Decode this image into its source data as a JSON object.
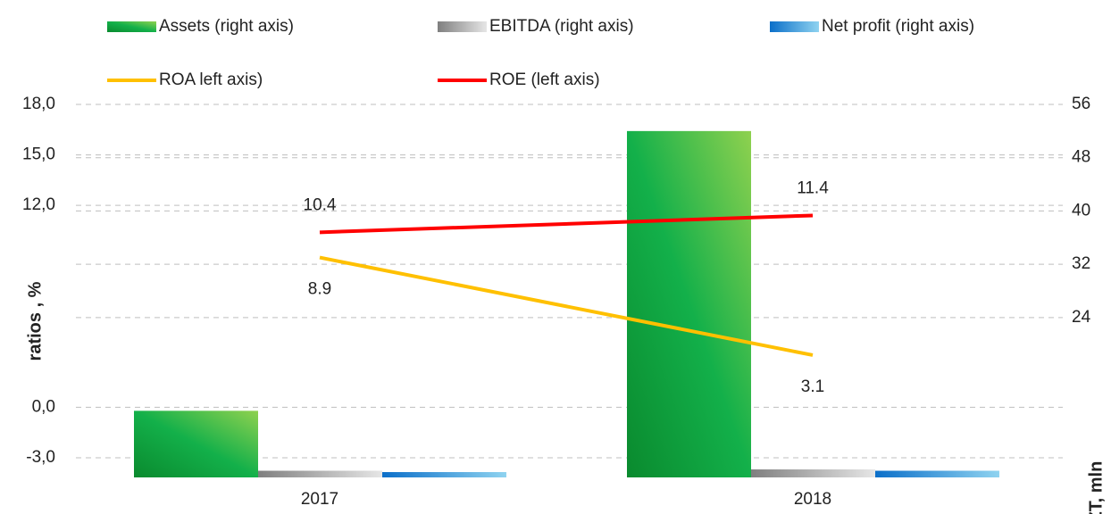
{
  "chart_data": {
    "type": "bar_line",
    "categories": [
      "2017",
      "2018"
    ],
    "ylabel": "ratios , %",
    "y2label": "KZT, mln",
    "ylim": [
      -3,
      18
    ],
    "yticks": [
      {
        "value": -3,
        "label": "-3,0"
      },
      {
        "value": 0,
        "label": "0,0"
      },
      {
        "value": 12,
        "label": "12,0"
      },
      {
        "value": 15,
        "label": "15,0"
      },
      {
        "value": 18,
        "label": "18,0"
      }
    ],
    "y2lim": [
      0,
      56
    ],
    "y2ticks": [
      24,
      32,
      40,
      48,
      56
    ],
    "grid": true,
    "legend": "top",
    "series": [
      {
        "name": "Assets (right axis)",
        "type": "bar",
        "axis": "y2",
        "color": "#1fa84a",
        "values": [
          10,
          52
        ]
      },
      {
        "name": "EBITDA (right axis)",
        "type": "bar",
        "axis": "y2",
        "color": "#a6a6a6",
        "values": [
          1,
          1.2
        ]
      },
      {
        "name": "Net profit (right axis)",
        "type": "bar",
        "axis": "y2",
        "color": "#2e8fd6",
        "values": [
          0.8,
          1
        ]
      },
      {
        "name": "ROA left axis)",
        "type": "line",
        "color": "#ffc000",
        "values": [
          8.9,
          3.1
        ]
      },
      {
        "name": "ROE (left axis)",
        "type": "line",
        "color": "#ff0000",
        "values": [
          10.4,
          11.4
        ]
      }
    ]
  }
}
